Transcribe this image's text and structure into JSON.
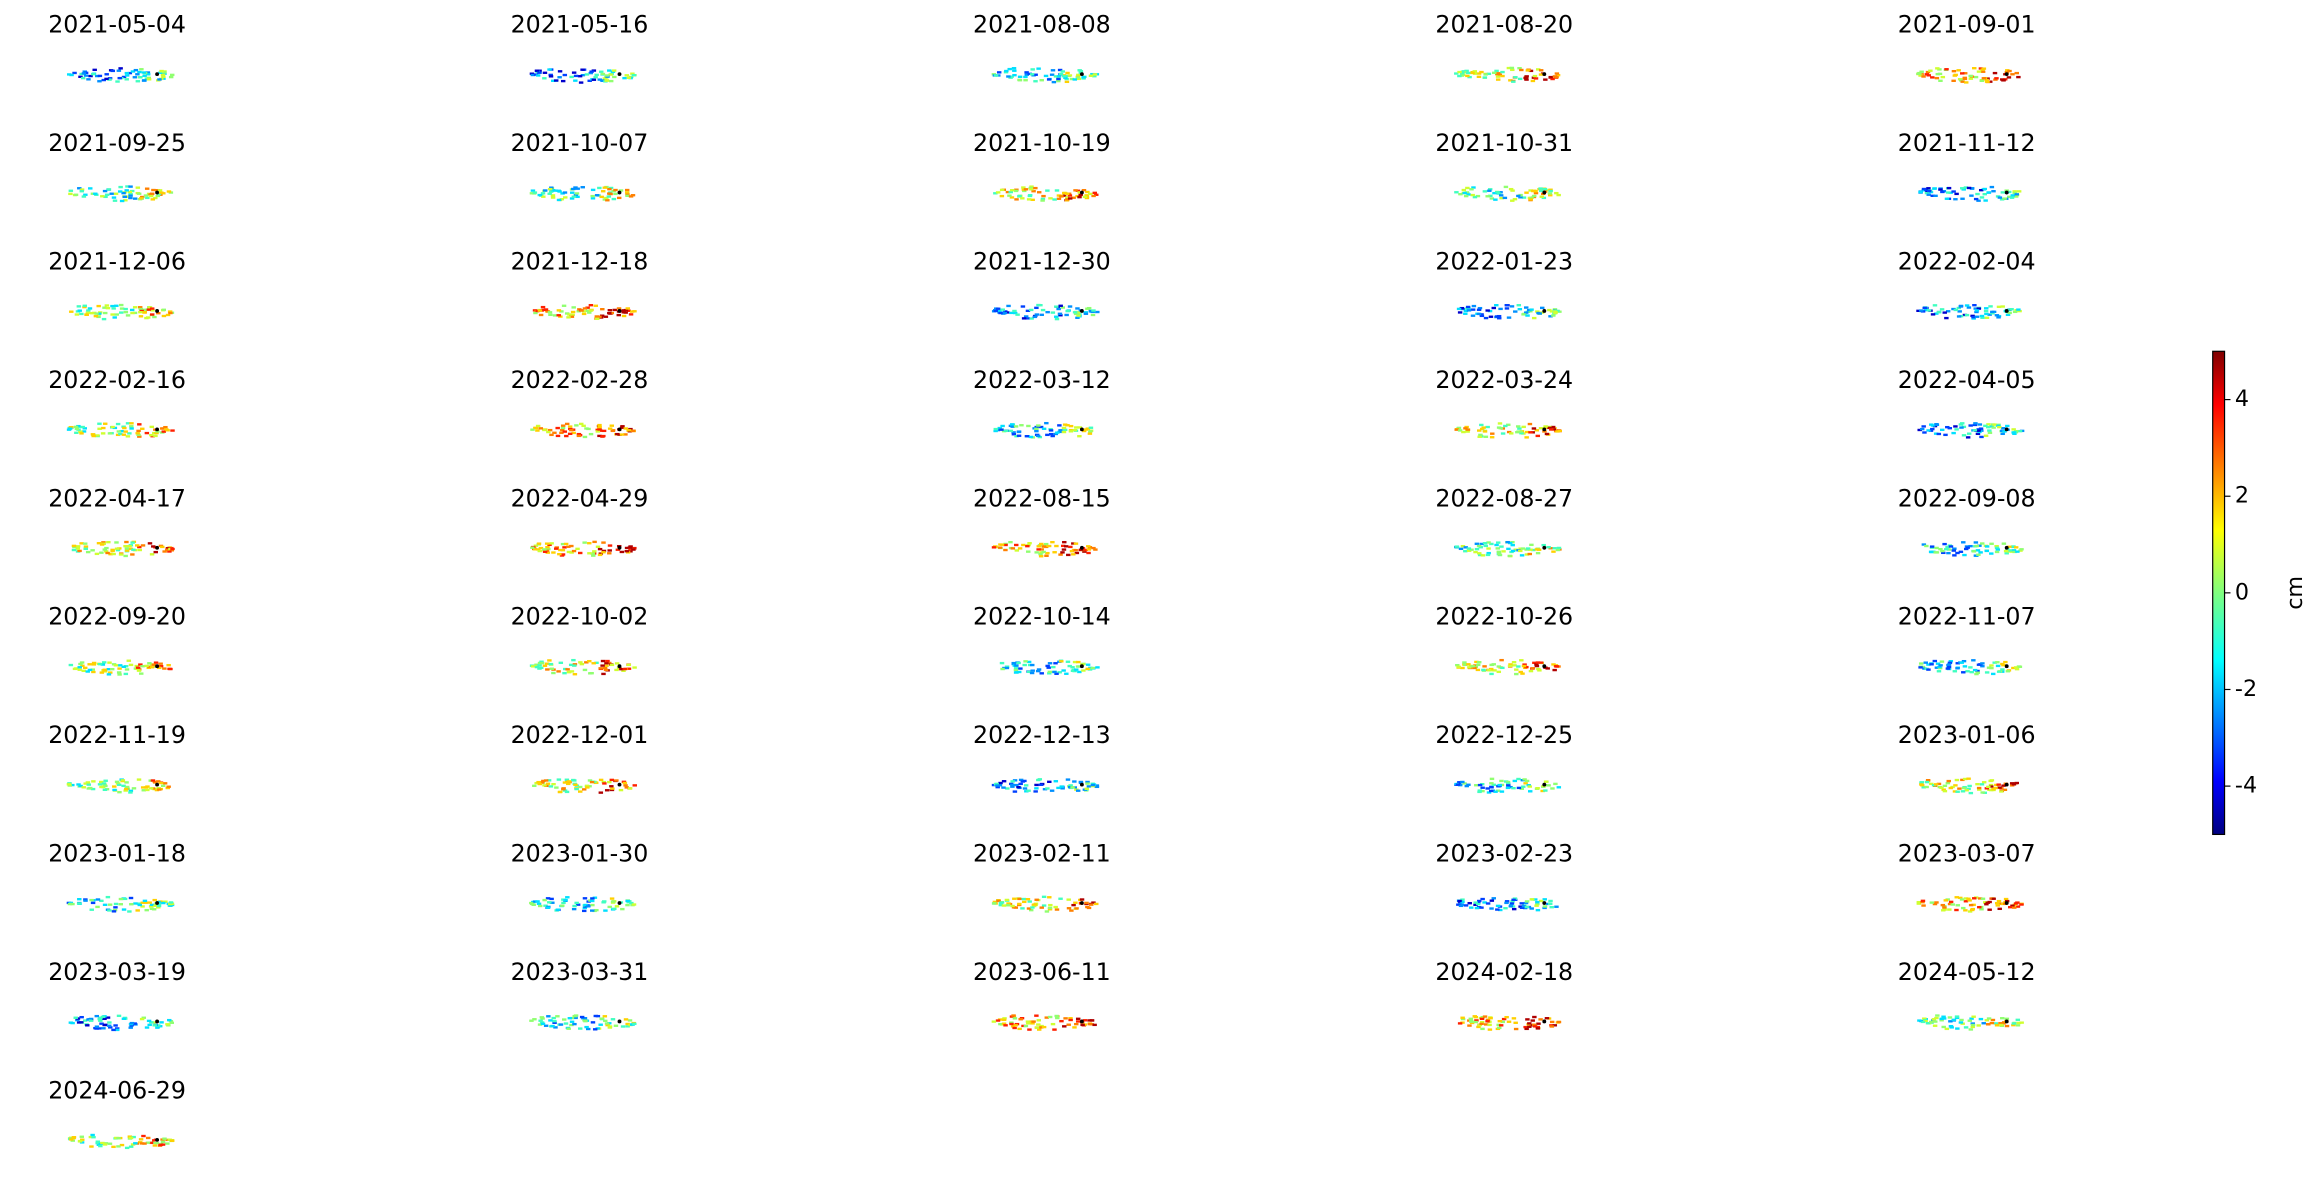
{
  "chart_data": {
    "type": "map-grid",
    "panels": [
      "2021-05-04",
      "2021-05-16",
      "2021-08-08",
      "2021-08-20",
      "2021-09-01",
      "2021-09-25",
      "2021-10-07",
      "2021-10-19",
      "2021-10-31",
      "2021-11-12",
      "2021-12-06",
      "2021-12-18",
      "2021-12-30",
      "2022-01-23",
      "2022-02-04",
      "2022-02-16",
      "2022-02-28",
      "2022-03-12",
      "2022-03-24",
      "2022-04-05",
      "2022-04-17",
      "2022-04-29",
      "2022-08-15",
      "2022-08-27",
      "2022-09-08",
      "2022-09-20",
      "2022-10-02",
      "2022-10-14",
      "2022-10-26",
      "2022-11-07",
      "2022-11-19",
      "2022-12-01",
      "2022-12-13",
      "2022-12-25",
      "2023-01-06",
      "2023-01-18",
      "2023-01-30",
      "2023-02-11",
      "2023-02-23",
      "2023-03-07",
      "2023-03-19",
      "2023-03-31",
      "2023-06-11",
      "2024-02-18",
      "2024-05-12",
      "2024-06-29"
    ],
    "colorbar_label": "cm",
    "ylim": [
      -5,
      5
    ],
    "yticks": [
      -4,
      -2,
      0,
      2,
      4
    ]
  }
}
